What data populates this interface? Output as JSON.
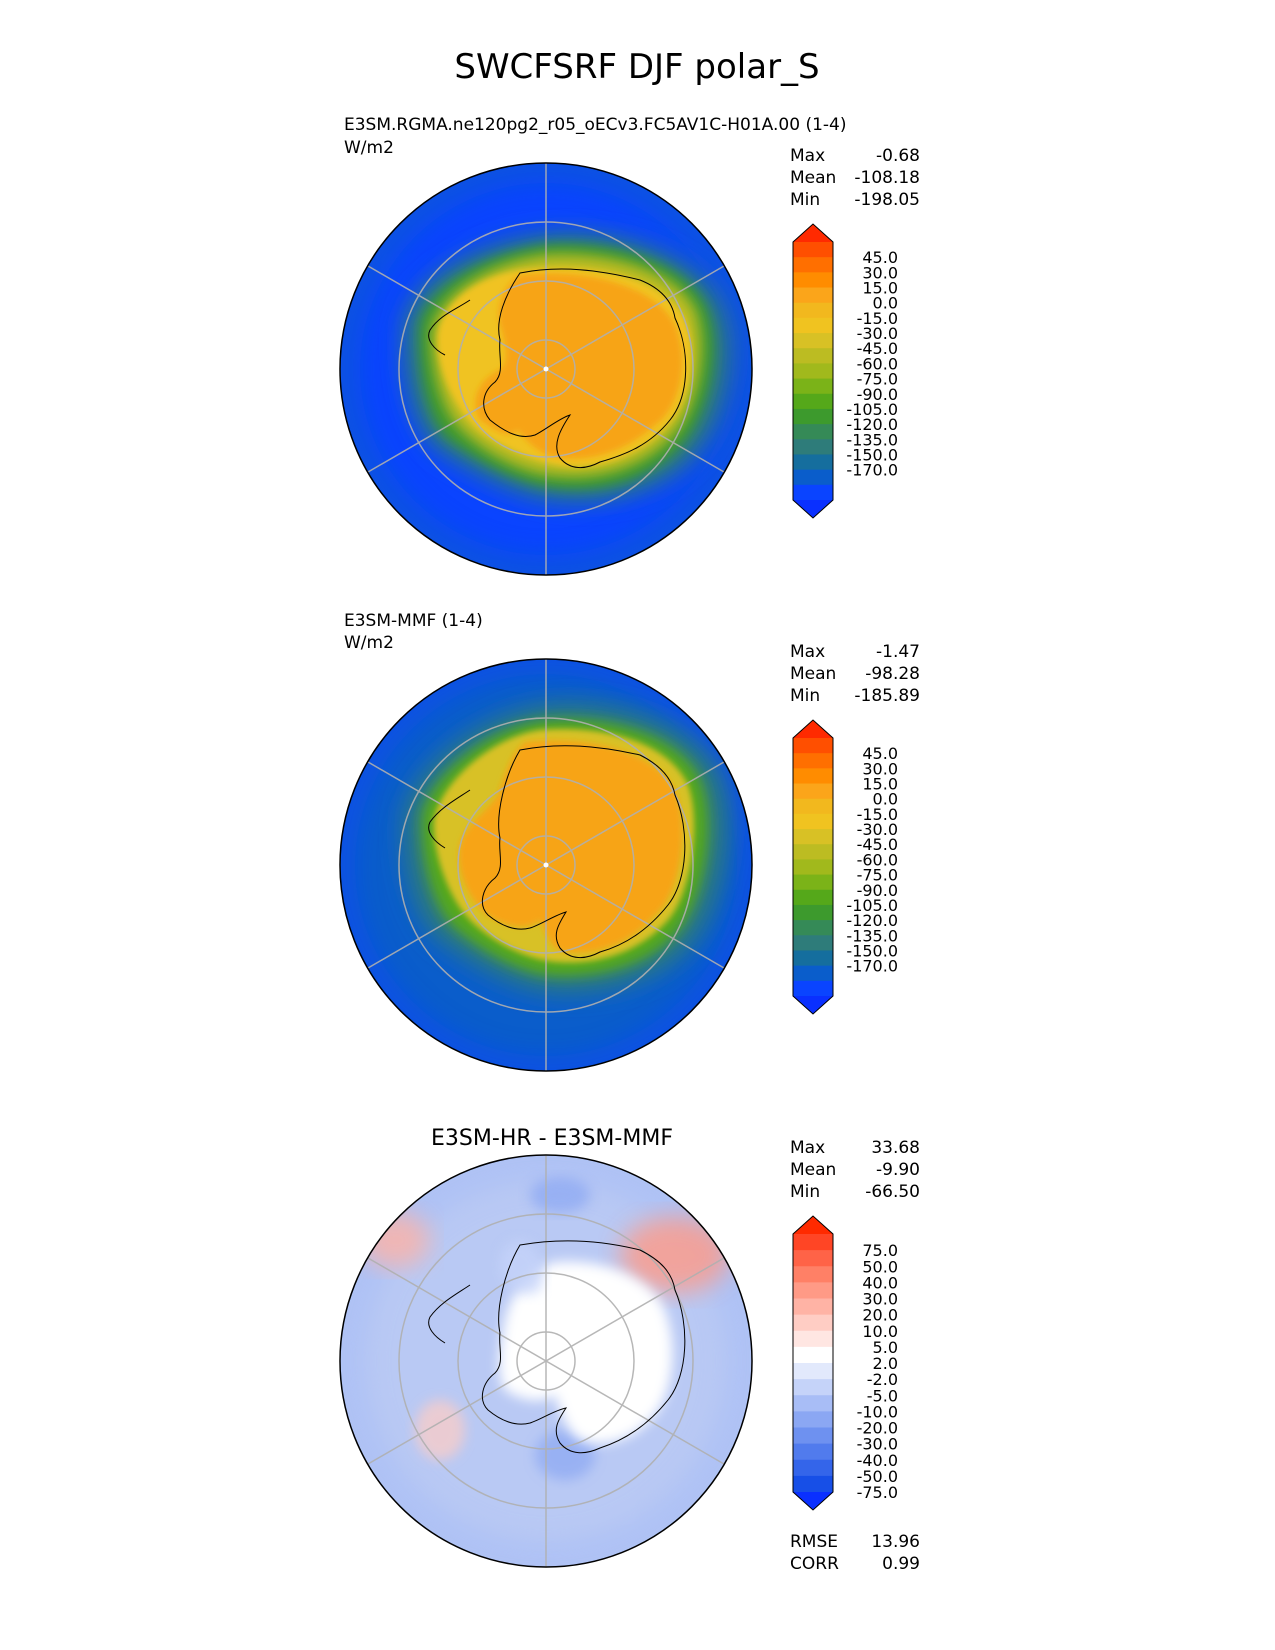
{
  "title": "SWCFSRF DJF polar_S",
  "colors": {
    "continent_outline": "#000000",
    "grid": "#b0b0b0",
    "ocean_model": "#0a55e0",
    "land_model": "#f7a418",
    "diff_ocean": "#b9c9f4",
    "diff_land": "#ffffff"
  },
  "chart_data": [
    {
      "type": "heatmap",
      "projection": "south-polar-stereographic",
      "title": "",
      "label": "E3SM.RGMA.ne120pg2_r05_oECv3.FC5AV1C-H01A.00 (1-4)",
      "units": "W/m2",
      "stats": {
        "rows": [
          {
            "name": "Max",
            "value": "-0.68"
          },
          {
            "name": "Mean",
            "value": "-108.18"
          },
          {
            "name": "Min",
            "value": "-198.05"
          }
        ]
      },
      "colorbar": {
        "extend": "both",
        "tick_labels": [
          "45.0",
          "30.0",
          "15.0",
          "0.0",
          "-15.0",
          "-30.0",
          "-45.0",
          "-60.0",
          "-75.0",
          "-90.0",
          "-105.0",
          "-120.0",
          "-135.0",
          "-150.0",
          "-170.0"
        ],
        "colors": [
          "#ff2a00",
          "#ff4f00",
          "#ff6f00",
          "#ff8c00",
          "#fba51a",
          "#f2b81e",
          "#f0c320",
          "#d8c125",
          "#bcbc22",
          "#a1b91c",
          "#7bb318",
          "#55a81a",
          "#3d9a2d",
          "#358a57",
          "#2e7c7a",
          "#156e9e",
          "#0a5dcb",
          "#0a44ff",
          "#0a30ff"
        ]
      }
    },
    {
      "type": "heatmap",
      "projection": "south-polar-stereographic",
      "title": "",
      "label": "E3SM-MMF (1-4)",
      "units": "W/m2",
      "stats": {
        "rows": [
          {
            "name": "Max",
            "value": "-1.47"
          },
          {
            "name": "Mean",
            "value": "-98.28"
          },
          {
            "name": "Min",
            "value": "-185.89"
          }
        ]
      },
      "colorbar": {
        "extend": "both",
        "tick_labels": [
          "45.0",
          "30.0",
          "15.0",
          "0.0",
          "-15.0",
          "-30.0",
          "-45.0",
          "-60.0",
          "-75.0",
          "-90.0",
          "-105.0",
          "-120.0",
          "-135.0",
          "-150.0",
          "-170.0"
        ],
        "colors": [
          "#ff2a00",
          "#ff4f00",
          "#ff6f00",
          "#ff8c00",
          "#fba51a",
          "#f2b81e",
          "#f0c320",
          "#d8c125",
          "#bcbc22",
          "#a1b91c",
          "#7bb318",
          "#55a81a",
          "#3d9a2d",
          "#358a57",
          "#2e7c7a",
          "#156e9e",
          "#0a5dcb",
          "#0a44ff",
          "#0a30ff"
        ]
      }
    },
    {
      "type": "heatmap",
      "projection": "south-polar-stereographic",
      "title": "E3SM-HR - E3SM-MMF",
      "label": "",
      "units": "",
      "stats": {
        "rows": [
          {
            "name": "Max",
            "value": "33.68"
          },
          {
            "name": "Mean",
            "value": "-9.90"
          },
          {
            "name": "Min",
            "value": "-66.50"
          }
        ]
      },
      "metrics": [
        {
          "name": "RMSE",
          "value": "13.96"
        },
        {
          "name": "CORR",
          "value": "0.99"
        }
      ],
      "colorbar": {
        "extend": "both",
        "tick_labels": [
          "75.0",
          "50.0",
          "40.0",
          "30.0",
          "20.0",
          "10.0",
          "5.0",
          "2.0",
          "-2.0",
          "-5.0",
          "-10.0",
          "-20.0",
          "-30.0",
          "-40.0",
          "-50.0",
          "-75.0"
        ],
        "colors": [
          "#ff2a00",
          "#ff4525",
          "#ff6347",
          "#ff8066",
          "#ff9a86",
          "#ffb3a5",
          "#ffcdc4",
          "#ffe6e2",
          "#ffffff",
          "#e2e9fc",
          "#c5d3f9",
          "#a8bdf6",
          "#8ba7f3",
          "#6e91f0",
          "#517bed",
          "#3465ea",
          "#174fe7",
          "#0a30ff"
        ]
      }
    }
  ]
}
